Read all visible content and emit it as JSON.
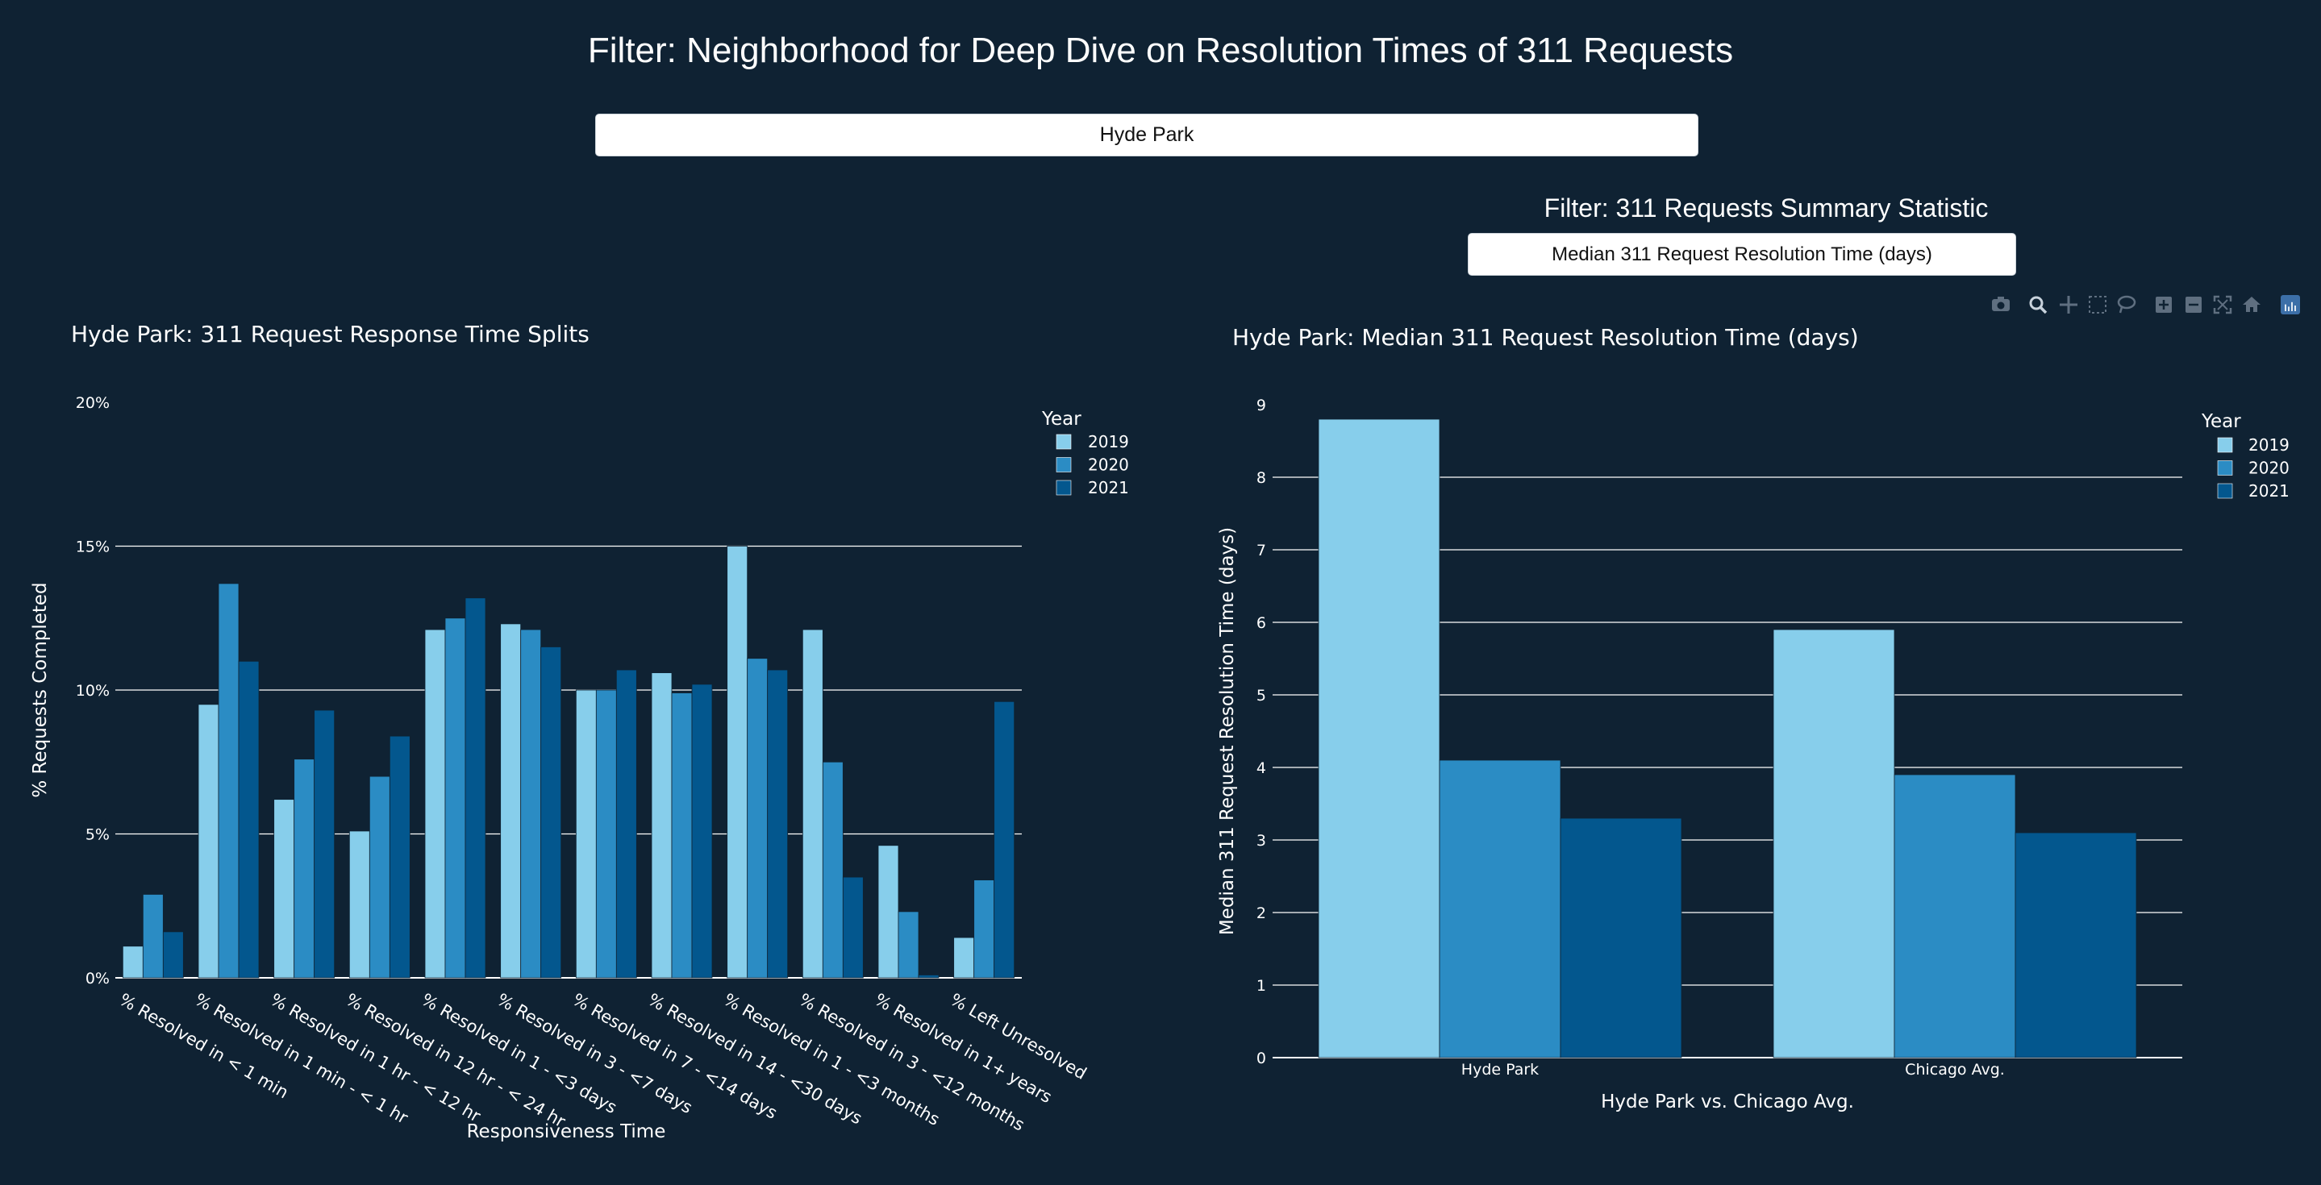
{
  "page": {
    "title": "Filter: Neighborhood for Deep Dive on Resolution Times of 311 Requests",
    "neighborhood_selected": "Hyde Park",
    "summary_filter_title": "Filter: 311 Requests Summary Statistic",
    "summary_selected": "Median 311 Request Resolution Time (days)"
  },
  "modebar": {
    "icons": [
      "camera-icon",
      "zoom-icon",
      "pan-icon",
      "box-select-icon",
      "lasso-icon",
      "zoom-in-icon",
      "zoom-out-icon",
      "autoscale-icon",
      "reset-axes-icon",
      "plotly-logo-icon"
    ]
  },
  "colors": {
    "2019": "#87ceeb",
    "2020": "#2b8cc4",
    "2021": "#03578e",
    "background": "#0f2233",
    "grid": "#ffffff"
  },
  "chart_data": [
    {
      "type": "bar",
      "title": "Hyde Park: 311 Request Response Time Splits",
      "xlabel": "Responsiveness Time",
      "ylabel": "% Requests Completed",
      "ylim": [
        0,
        20
      ],
      "yticks": [
        "0%",
        "5%",
        "10%",
        "15%",
        "20%"
      ],
      "legend_title": "Year",
      "legend_position": "top-right",
      "categories": [
        "% Resolved in < 1 min",
        "% Resolved in 1 min - < 1 hr",
        "% Resolved in 1 hr - < 12 hr",
        "% Resolved in 12 hr - < 24 hr",
        "% Resolved in 1 - <3 days",
        "% Resolved in 3 - <7 days",
        "% Resolved in 7 - <14 days",
        "% Resolved in 14 - <30 days",
        "% Resolved in 1 - <3 months",
        "% Resolved in 3 - <12 months",
        "% Resolved in 1+ years",
        "% Left Unresolved"
      ],
      "series": [
        {
          "name": "2019",
          "values": [
            1.1,
            9.5,
            6.2,
            5.1,
            12.1,
            12.3,
            10.0,
            10.6,
            15.0,
            12.1,
            4.6,
            1.4
          ]
        },
        {
          "name": "2020",
          "values": [
            2.9,
            13.7,
            7.6,
            7.0,
            12.5,
            12.1,
            10.0,
            9.9,
            11.1,
            7.5,
            2.3,
            3.4
          ]
        },
        {
          "name": "2021",
          "values": [
            1.6,
            11.0,
            9.3,
            8.4,
            13.2,
            11.5,
            10.7,
            10.2,
            10.7,
            3.5,
            0.1,
            9.6
          ]
        }
      ]
    },
    {
      "type": "bar",
      "title": "Hyde Park: Median 311 Request Resolution Time (days)",
      "xlabel": "Hyde Park vs. Chicago Avg.",
      "ylabel": "Median 311 Request Resolution Time (days)",
      "ylim": [
        0,
        9
      ],
      "yticks": [
        "0",
        "1",
        "2",
        "3",
        "4",
        "5",
        "6",
        "7",
        "8",
        "9"
      ],
      "legend_title": "Year",
      "legend_position": "top-right",
      "categories": [
        "Hyde Park",
        "Chicago Avg."
      ],
      "series": [
        {
          "name": "2019",
          "values": [
            8.8,
            5.9
          ]
        },
        {
          "name": "2020",
          "values": [
            4.1,
            3.9
          ]
        },
        {
          "name": "2021",
          "values": [
            3.3,
            3.1
          ]
        }
      ]
    }
  ]
}
